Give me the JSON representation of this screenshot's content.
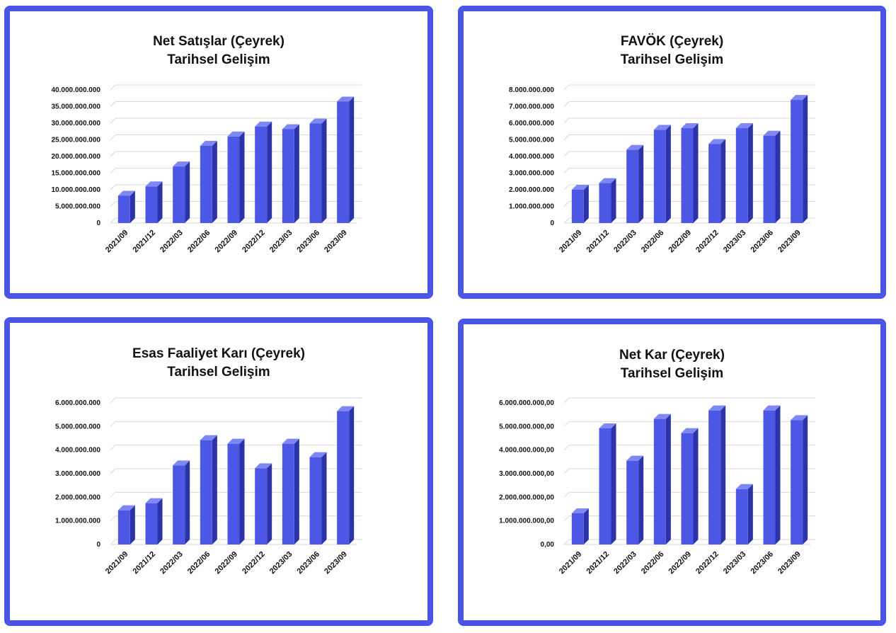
{
  "colors": {
    "frame": "#4a55e6",
    "bar_front": "#4c57e6",
    "bar_side": "#2b33a6",
    "bar_top": "#7e87f2",
    "grid": "#d9d9d9",
    "text": "#111111"
  },
  "chart_data": [
    {
      "type": "bar",
      "title": "Net Satışlar (Çeyrek)",
      "subtitle": "Tarihsel Gelişim",
      "categories": [
        "2021/09",
        "2021/12",
        "2022/03",
        "2022/06",
        "2022/09",
        "2022/12",
        "2023/03",
        "2023/06",
        "2023/09"
      ],
      "values": [
        8200000000,
        11000000000,
        17000000000,
        23200000000,
        26000000000,
        29000000000,
        28200000000,
        29900000000,
        36500000000
      ],
      "ylim": [
        0,
        40000000000
      ],
      "yticks": [
        0,
        5000000000,
        10000000000,
        15000000000,
        20000000000,
        25000000000,
        30000000000,
        35000000000,
        40000000000
      ],
      "ytick_labels": [
        "0",
        "5.000.000.000",
        "10.000.000.000",
        "15.000.000.000",
        "20.000.000.000",
        "25.000.000.000",
        "30.000.000.000",
        "35.000.000.000",
        "40.000.000.000"
      ],
      "grid": true,
      "legend": "none"
    },
    {
      "type": "bar",
      "title": "FAVÖK (Çeyrek)",
      "subtitle": "Tarihsel Gelişim",
      "categories": [
        "2021/09",
        "2021/12",
        "2022/03",
        "2022/06",
        "2022/09",
        "2022/12",
        "2023/03",
        "2023/06",
        "2023/09"
      ],
      "values": [
        2000000000,
        2400000000,
        4400000000,
        5600000000,
        5700000000,
        4750000000,
        5700000000,
        5250000000,
        7400000000
      ],
      "ylim": [
        0,
        8000000000
      ],
      "yticks": [
        0,
        1000000000,
        2000000000,
        3000000000,
        4000000000,
        5000000000,
        6000000000,
        7000000000,
        8000000000
      ],
      "ytick_labels": [
        "0",
        "1.000.000.000",
        "2.000.000.000",
        "3.000.000.000",
        "4.000.000.000",
        "5.000.000.000",
        "6.000.000.000",
        "7.000.000.000",
        "8.000.000.000"
      ],
      "grid": true,
      "legend": "none"
    },
    {
      "type": "bar",
      "title": "Esas Faaliyet Karı (Çeyrek)",
      "subtitle": "Tarihsel Gelişim",
      "categories": [
        "2021/09",
        "2021/12",
        "2022/03",
        "2022/06",
        "2022/09",
        "2022/12",
        "2023/03",
        "2023/06",
        "2023/09"
      ],
      "values": [
        1450000000,
        1750000000,
        3350000000,
        4420000000,
        4270000000,
        3230000000,
        4270000000,
        3700000000,
        5650000000
      ],
      "ylim": [
        0,
        6000000000
      ],
      "yticks": [
        0,
        1000000000,
        2000000000,
        3000000000,
        4000000000,
        5000000000,
        6000000000
      ],
      "ytick_labels": [
        "0",
        "1.000.000.000",
        "2.000.000.000",
        "3.000.000.000",
        "4.000.000.000",
        "5.000.000.000",
        "6.000.000.000"
      ],
      "grid": true,
      "legend": "none"
    },
    {
      "type": "bar",
      "title": "Net Kar (Çeyrek)",
      "subtitle": "Tarihsel Gelişim",
      "categories": [
        "2021/09",
        "2021/12",
        "2022/03",
        "2022/06",
        "2022/09",
        "2022/12",
        "2023/03",
        "2023/06",
        "2023/09"
      ],
      "values": [
        1320000000,
        4920000000,
        3550000000,
        5320000000,
        4720000000,
        5680000000,
        2350000000,
        5680000000,
        5270000000
      ],
      "ylim": [
        0,
        6000000000
      ],
      "yticks": [
        0,
        1000000000,
        2000000000,
        3000000000,
        4000000000,
        5000000000,
        6000000000
      ],
      "ytick_labels": [
        "0,00",
        "1.000.000.000,00",
        "2.000.000.000,00",
        "3.000.000.000,00",
        "4.000.000.000,00",
        "5.000.000.000,00",
        "6.000.000.000,00"
      ],
      "grid": true,
      "legend": "none"
    }
  ]
}
